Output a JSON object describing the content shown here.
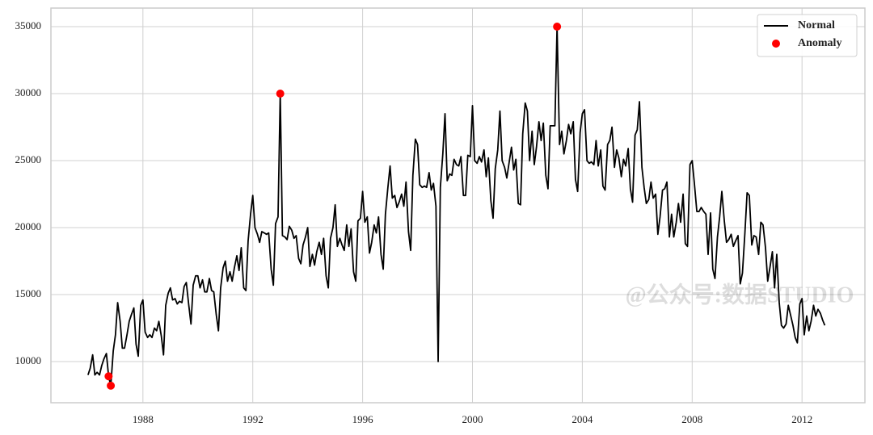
{
  "chart_data": {
    "type": "line",
    "watermark": "@公众号:数据STUDIO",
    "xlim": [
      1984.65,
      2014.29
    ],
    "xticks": [
      1988,
      1992,
      1996,
      2000,
      2004,
      2008,
      2012
    ],
    "ylim": [
      6928,
      36386
    ],
    "yticks": [
      10000,
      15000,
      20000,
      25000,
      30000,
      35000
    ],
    "grid": true,
    "legend": "upper right",
    "series": [
      {
        "name": "Normal",
        "type": "line",
        "color": "#000000",
        "x": [
          1986.0,
          1986.08,
          1986.17,
          1986.25,
          1986.33,
          1986.42,
          1986.5,
          1986.58,
          1986.67,
          1986.75,
          1986.83,
          1986.92,
          1987.0,
          1987.08,
          1987.17,
          1987.25,
          1987.33,
          1987.42,
          1987.5,
          1987.58,
          1987.67,
          1987.75,
          1987.83,
          1987.92,
          1988.0,
          1988.08,
          1988.17,
          1988.25,
          1988.33,
          1988.42,
          1988.5,
          1988.58,
          1988.67,
          1988.75,
          1988.83,
          1988.92,
          1989.0,
          1989.08,
          1989.17,
          1989.25,
          1989.33,
          1989.42,
          1989.5,
          1989.58,
          1989.67,
          1989.75,
          1989.83,
          1989.92,
          1990.0,
          1990.08,
          1990.17,
          1990.25,
          1990.33,
          1990.42,
          1990.5,
          1990.58,
          1990.67,
          1990.75,
          1990.83,
          1990.92,
          1991.0,
          1991.08,
          1991.17,
          1991.25,
          1991.33,
          1991.42,
          1991.5,
          1991.58,
          1991.67,
          1991.75,
          1991.83,
          1991.92,
          1992.0,
          1992.08,
          1992.17,
          1992.25,
          1992.33,
          1992.42,
          1992.5,
          1992.58,
          1992.67,
          1992.75,
          1992.83,
          1992.92,
          1993.0,
          1993.08,
          1993.17,
          1993.25,
          1993.33,
          1993.42,
          1993.5,
          1993.58,
          1993.67,
          1993.75,
          1993.83,
          1993.92,
          1994.0,
          1994.08,
          1994.17,
          1994.25,
          1994.33,
          1994.42,
          1994.5,
          1994.58,
          1994.67,
          1994.75,
          1994.83,
          1994.92,
          1995.0,
          1995.08,
          1995.17,
          1995.25,
          1995.33,
          1995.42,
          1995.5,
          1995.58,
          1995.67,
          1995.75,
          1995.83,
          1995.92,
          1996.0,
          1996.08,
          1996.17,
          1996.25,
          1996.33,
          1996.42,
          1996.5,
          1996.58,
          1996.67,
          1996.75,
          1996.83,
          1996.92,
          1997.0,
          1997.08,
          1997.17,
          1997.25,
          1997.33,
          1997.42,
          1997.5,
          1997.58,
          1997.67,
          1997.75,
          1997.83,
          1997.92,
          1998.0,
          1998.08,
          1998.17,
          1998.25,
          1998.33,
          1998.42,
          1998.5,
          1998.58,
          1998.67,
          1998.75,
          1998.83,
          1998.92,
          1999.0,
          1999.08,
          1999.17,
          1999.25,
          1999.33,
          1999.42,
          1999.5,
          1999.58,
          1999.67,
          1999.75,
          1999.83,
          1999.92,
          2000.0,
          2000.08,
          2000.17,
          2000.25,
          2000.33,
          2000.42,
          2000.5,
          2000.58,
          2000.67,
          2000.75,
          2000.83,
          2000.92,
          2001.0,
          2001.08,
          2001.17,
          2001.25,
          2001.33,
          2001.42,
          2001.5,
          2001.58,
          2001.67,
          2001.75,
          2001.83,
          2001.92,
          2002.0,
          2002.08,
          2002.17,
          2002.25,
          2002.33,
          2002.42,
          2002.5,
          2002.58,
          2002.67,
          2002.75,
          2002.83,
          2002.92,
          2003.0,
          2003.08,
          2003.17,
          2003.25,
          2003.33,
          2003.42,
          2003.5,
          2003.58,
          2003.67,
          2003.75,
          2003.83,
          2003.92,
          2004.0,
          2004.08,
          2004.17,
          2004.25,
          2004.33,
          2004.42,
          2004.5,
          2004.58,
          2004.67,
          2004.75,
          2004.83,
          2004.92,
          2005.0,
          2005.08,
          2005.17,
          2005.25,
          2005.33,
          2005.42,
          2005.5,
          2005.58,
          2005.67,
          2005.75,
          2005.83,
          2005.92,
          2006.0,
          2006.08,
          2006.17,
          2006.25,
          2006.33,
          2006.42,
          2006.5,
          2006.58,
          2006.67,
          2006.75,
          2006.83,
          2006.92,
          2007.0,
          2007.08,
          2007.17,
          2007.25,
          2007.33,
          2007.42,
          2007.5,
          2007.58,
          2007.67,
          2007.75,
          2007.83,
          2007.92,
          2008.0,
          2008.08,
          2008.17,
          2008.25,
          2008.33,
          2008.42,
          2008.5,
          2008.58,
          2008.67,
          2008.75,
          2008.83,
          2008.92,
          2009.0,
          2009.08,
          2009.17,
          2009.25,
          2009.33,
          2009.42,
          2009.5,
          2009.58,
          2009.67,
          2009.75,
          2009.83,
          2009.92,
          2010.0,
          2010.08,
          2010.17,
          2010.25,
          2010.33,
          2010.42,
          2010.5,
          2010.58,
          2010.67,
          2010.75,
          2010.83,
          2010.92,
          2011.0,
          2011.08,
          2011.17,
          2011.25,
          2011.33,
          2011.42,
          2011.5,
          2011.58,
          2011.67,
          2011.75,
          2011.83,
          2011.92,
          2012.0,
          2012.08,
          2012.17,
          2012.25,
          2012.33,
          2012.42,
          2012.5,
          2012.58,
          2012.67,
          2012.75,
          2012.83
        ],
        "values": [
          9000,
          9500,
          10500,
          9000,
          9200,
          9000,
          9700,
          10200,
          10600,
          8900,
          8200,
          10800,
          12000,
          14400,
          13000,
          11000,
          11000,
          12000,
          13000,
          13500,
          14000,
          11300,
          10400,
          14200,
          14600,
          12200,
          11800,
          12000,
          11800,
          12500,
          12300,
          13000,
          11900,
          10500,
          14200,
          15100,
          15500,
          14600,
          14700,
          14300,
          14500,
          14400,
          15600,
          15900,
          14200,
          12800,
          15700,
          16400,
          16400,
          15500,
          16100,
          15200,
          15200,
          16200,
          15300,
          15200,
          13500,
          12300,
          15500,
          17000,
          17500,
          16000,
          16700,
          16000,
          17000,
          17900,
          16800,
          18500,
          15500,
          15300,
          19000,
          21000,
          22400,
          20000,
          19500,
          18900,
          19700,
          19600,
          19500,
          19600,
          16900,
          15700,
          20300,
          20800,
          30000,
          19400,
          19300,
          19100,
          20100,
          19800,
          19200,
          19400,
          17700,
          17300,
          18700,
          19300,
          20000,
          17100,
          18000,
          17200,
          18200,
          18900,
          18000,
          19200,
          16400,
          15500,
          19200,
          20000,
          21700,
          18600,
          19200,
          18700,
          18300,
          20200,
          18600,
          19900,
          16700,
          16000,
          20500,
          20700,
          22700,
          20400,
          20800,
          18100,
          18900,
          20200,
          19600,
          20800,
          18000,
          16900,
          21000,
          23000,
          24600,
          22200,
          22400,
          21500,
          21900,
          22500,
          21600,
          23400,
          19700,
          18300,
          23900,
          26600,
          26200,
          23200,
          23000,
          23100,
          23000,
          24100,
          22800,
          23300,
          21600,
          10000,
          23000,
          25500,
          28500,
          23500,
          24000,
          23900,
          25100,
          24700,
          24600,
          25300,
          22400,
          22400,
          25400,
          25300,
          29100,
          25000,
          24800,
          25300,
          24900,
          25800,
          23800,
          25200,
          22000,
          20700,
          24400,
          25800,
          28700,
          25000,
          24500,
          23700,
          24800,
          26000,
          24300,
          25100,
          21800,
          21700,
          27000,
          29300,
          28700,
          25000,
          27200,
          24700,
          26000,
          27900,
          26500,
          27800,
          23900,
          22900,
          27600,
          27600,
          27600,
          35000,
          26200,
          27200,
          25500,
          26500,
          27700,
          27000,
          27900,
          23600,
          22700,
          27100,
          28500,
          28800,
          25000,
          24800,
          24900,
          24700,
          26500,
          24600,
          25800,
          23100,
          22800,
          26200,
          26500,
          27500,
          24500,
          25800,
          25200,
          23800,
          25100,
          24600,
          25900,
          22900,
          21900,
          26900,
          27300,
          29400,
          24500,
          23000,
          21800,
          22100,
          23400,
          22200,
          22500,
          19500,
          20800,
          22800,
          22900,
          23400,
          19300,
          21000,
          19300,
          20400,
          21800,
          20400,
          22500,
          18800,
          18600,
          24700,
          25000,
          23300,
          21200,
          21200,
          21500,
          21200,
          21000,
          18000,
          21100,
          16900,
          16200,
          19300,
          20800,
          22700,
          20500,
          18900,
          19100,
          19500,
          18600,
          19000,
          19400,
          15800,
          16600,
          19600,
          22600,
          22400,
          18700,
          19400,
          19300,
          18000,
          20400,
          20200,
          18500,
          16000,
          17000,
          18200,
          15500,
          18000,
          14400,
          12700,
          12500,
          12800,
          14200,
          13500,
          12700,
          11800,
          11400,
          14300,
          14700,
          12000,
          13400,
          12300,
          13000,
          14200,
          13400,
          13900,
          13600,
          13100,
          12700
        ]
      },
      {
        "name": "Anomaly",
        "type": "scatter",
        "color": "#ff0000",
        "x": [
          1986.75,
          1986.83,
          1993.0,
          2003.08
        ],
        "values": [
          8900,
          8200,
          30000,
          35000
        ]
      }
    ]
  }
}
